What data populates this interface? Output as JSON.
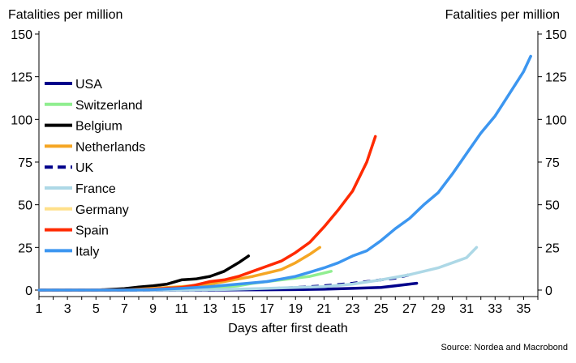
{
  "chart_data": {
    "type": "line",
    "ylabel_left": "Fatalities per million",
    "ylabel_right": "Fatalities per million",
    "xlabel": "Days after first death",
    "source": "Source: Nordea and Macrobond",
    "xlim": [
      1,
      36
    ],
    "ylim": [
      0,
      150
    ],
    "x_ticks": [
      1,
      3,
      5,
      7,
      9,
      11,
      13,
      15,
      17,
      19,
      21,
      23,
      25,
      27,
      29,
      31,
      33,
      35
    ],
    "y_ticks": [
      0,
      25,
      50,
      75,
      100,
      125,
      150
    ],
    "grid": false,
    "legend_position": "left",
    "series": [
      {
        "name": "USA",
        "color": "#00008B",
        "dash": false,
        "x": [
          1,
          3,
          5,
          7,
          9,
          11,
          13,
          15,
          17,
          19,
          21,
          23,
          25,
          26,
          27,
          27.5
        ],
        "y": [
          0,
          0,
          0,
          0,
          0,
          0,
          0,
          0.1,
          0.2,
          0.3,
          0.5,
          1,
          1.5,
          2.5,
          3.5,
          4
        ]
      },
      {
        "name": "Switzerland",
        "color": "#90EE90",
        "dash": false,
        "x": [
          1,
          3,
          5,
          7,
          9,
          11,
          13,
          15,
          16,
          17,
          18,
          19,
          20,
          21,
          21.5
        ],
        "y": [
          0,
          0,
          0,
          0,
          0.2,
          0.5,
          1,
          2.5,
          4,
          5,
          6,
          7,
          8,
          10,
          11
        ]
      },
      {
        "name": "Belgium",
        "color": "#000000",
        "dash": false,
        "x": [
          1,
          3,
          5,
          7,
          8,
          9,
          10,
          11,
          12,
          13,
          14,
          15,
          15.7
        ],
        "y": [
          0,
          0,
          0,
          0.8,
          1.8,
          2.5,
          3.5,
          6,
          6.5,
          8,
          11,
          16,
          20
        ]
      },
      {
        "name": "Netherlands",
        "color": "#F5A623",
        "dash": false,
        "x": [
          1,
          3,
          5,
          7,
          9,
          11,
          13,
          14,
          15,
          16,
          17,
          18,
          19,
          20,
          20.7
        ],
        "y": [
          0,
          0,
          0,
          0,
          1,
          2,
          3.5,
          5,
          6.5,
          8,
          10,
          12,
          16,
          21,
          25
        ]
      },
      {
        "name": "UK",
        "color": "#00008B",
        "dash": true,
        "x": [
          1,
          3,
          5,
          7,
          9,
          11,
          13,
          15,
          17,
          19,
          21,
          23,
          25,
          26,
          27
        ],
        "y": [
          0,
          0,
          0,
          0,
          0,
          0,
          0,
          0.3,
          0.8,
          1.5,
          2.5,
          4,
          6,
          7,
          9
        ]
      },
      {
        "name": "France",
        "color": "#ADD8E6",
        "dash": false,
        "x": [
          1,
          3,
          5,
          7,
          9,
          11,
          13,
          15,
          17,
          19,
          21,
          23,
          25,
          27,
          28,
          29,
          30,
          31,
          31.7
        ],
        "y": [
          0,
          0,
          0,
          0,
          0,
          0,
          0.2,
          0.5,
          1,
          1.5,
          2,
          3.5,
          6,
          9,
          11,
          13,
          16,
          19,
          25
        ]
      },
      {
        "name": "Germany",
        "color": "#FFE08A",
        "dash": false,
        "x": [],
        "y": []
      },
      {
        "name": "Spain",
        "color": "#FF2A00",
        "dash": false,
        "x": [
          1,
          3,
          5,
          7,
          9,
          11,
          12,
          13,
          14,
          15,
          16,
          17,
          18,
          19,
          20,
          21,
          22,
          23,
          24,
          24.6
        ],
        "y": [
          0,
          0,
          0,
          0,
          0.5,
          1.5,
          3,
          5,
          6,
          8,
          11,
          14,
          17,
          22,
          28,
          37,
          47,
          58,
          75,
          90
        ]
      },
      {
        "name": "Italy",
        "color": "#3C96F0",
        "dash": false,
        "x": [
          1,
          3,
          5,
          7,
          9,
          11,
          13,
          15,
          17,
          18,
          19,
          20,
          21,
          22,
          23,
          24,
          25,
          26,
          27,
          28,
          29,
          30,
          31,
          32,
          33,
          34,
          35,
          35.5
        ],
        "y": [
          0,
          0,
          0,
          0,
          0.3,
          1,
          2,
          3.5,
          5,
          6.5,
          8,
          10.5,
          13,
          16,
          20,
          23,
          29,
          36,
          42,
          50,
          57,
          68,
          80,
          92,
          102,
          115,
          128,
          137
        ]
      }
    ]
  }
}
